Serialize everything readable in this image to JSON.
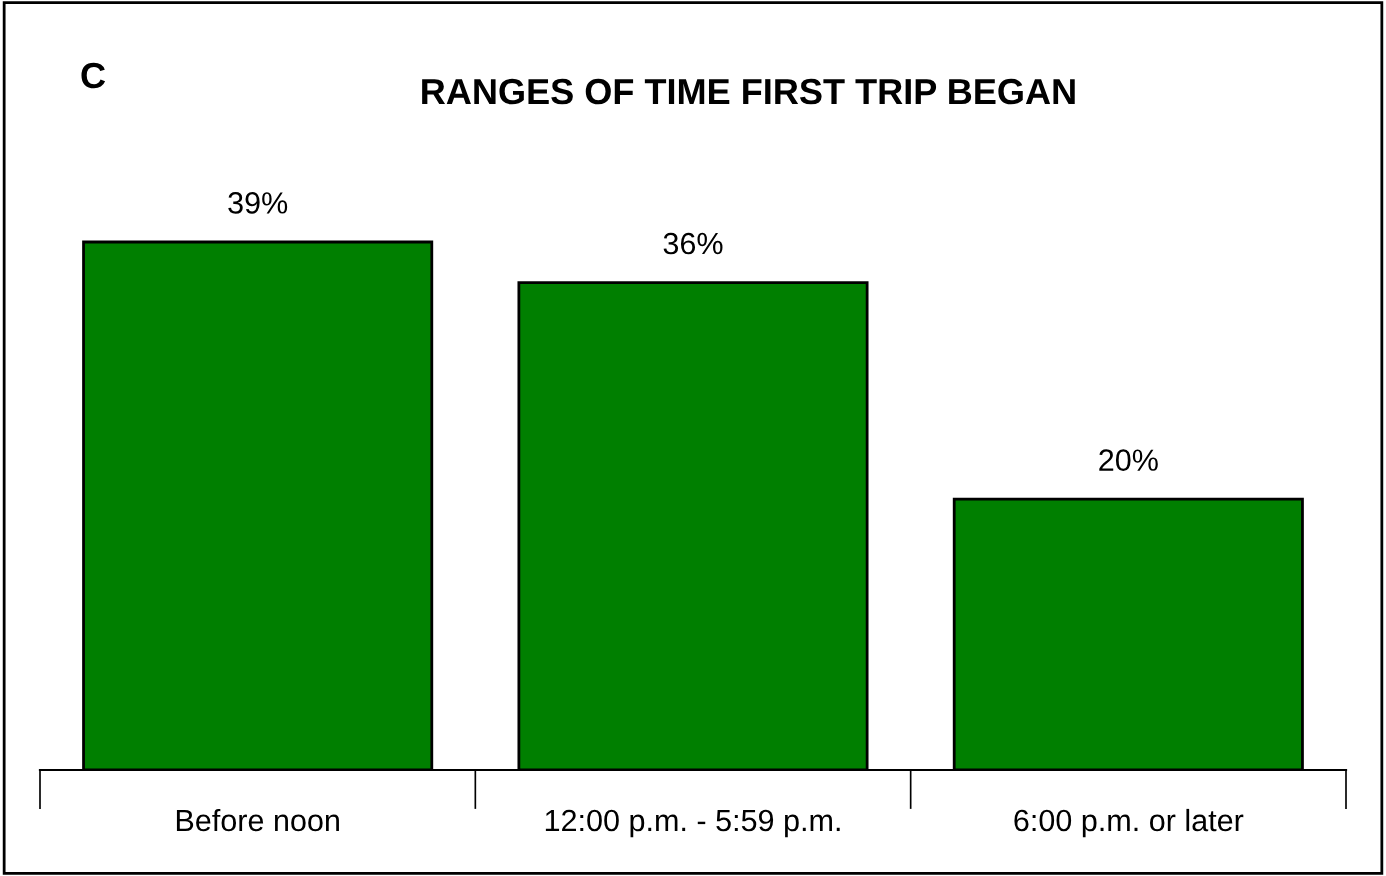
{
  "chart_data": {
    "type": "bar",
    "title": "RANGES OF TIME FIRST TRIP BEGAN",
    "annotations": [
      "C"
    ],
    "categories": [
      "Before noon",
      "12:00 p.m. - 5:59 p.m.",
      "6:00 p.m. or later"
    ],
    "values": [
      39,
      36,
      20
    ],
    "value_labels": [
      "39%",
      "36%",
      "20%"
    ],
    "color": "#007f00",
    "grid": false,
    "legend": false
  }
}
